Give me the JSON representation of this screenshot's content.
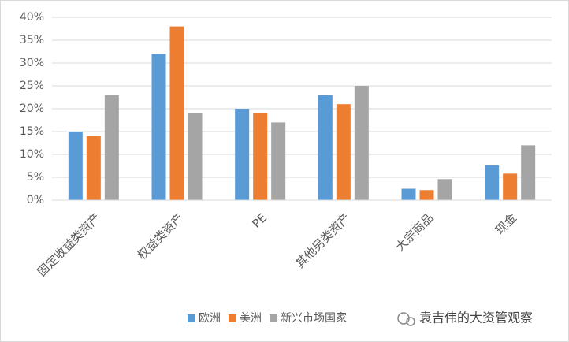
{
  "chart_data": {
    "type": "bar",
    "categories": [
      "固定收益类资产",
      "权益类资产",
      "PE",
      "其他另类资产",
      "大宗商品",
      "现金"
    ],
    "series": [
      {
        "name": "欧洲",
        "color": "#5b9bd5",
        "values": [
          15,
          32,
          20,
          23,
          2.5,
          7.6
        ]
      },
      {
        "name": "美洲",
        "color": "#ed7d31",
        "values": [
          14,
          38,
          19,
          21,
          2.2,
          5.8
        ]
      },
      {
        "name": "新兴市场国家",
        "color": "#a5a5a5",
        "values": [
          23,
          19,
          17,
          25,
          4.6,
          12
        ]
      }
    ],
    "ylim": [
      0,
      40
    ],
    "yticks": [
      {
        "value": 0,
        "label": "0%"
      },
      {
        "value": 5,
        "label": "5%"
      },
      {
        "value": 10,
        "label": "10%"
      },
      {
        "value": 15,
        "label": "15%"
      },
      {
        "value": 20,
        "label": "20%"
      },
      {
        "value": 25,
        "label": "25%"
      },
      {
        "value": 30,
        "label": "30%"
      },
      {
        "value": 35,
        "label": "35%"
      },
      {
        "value": 40,
        "label": "40%"
      }
    ],
    "grid": true,
    "legend": "bottom",
    "watermark": "袁吉伟的大资管观察"
  }
}
